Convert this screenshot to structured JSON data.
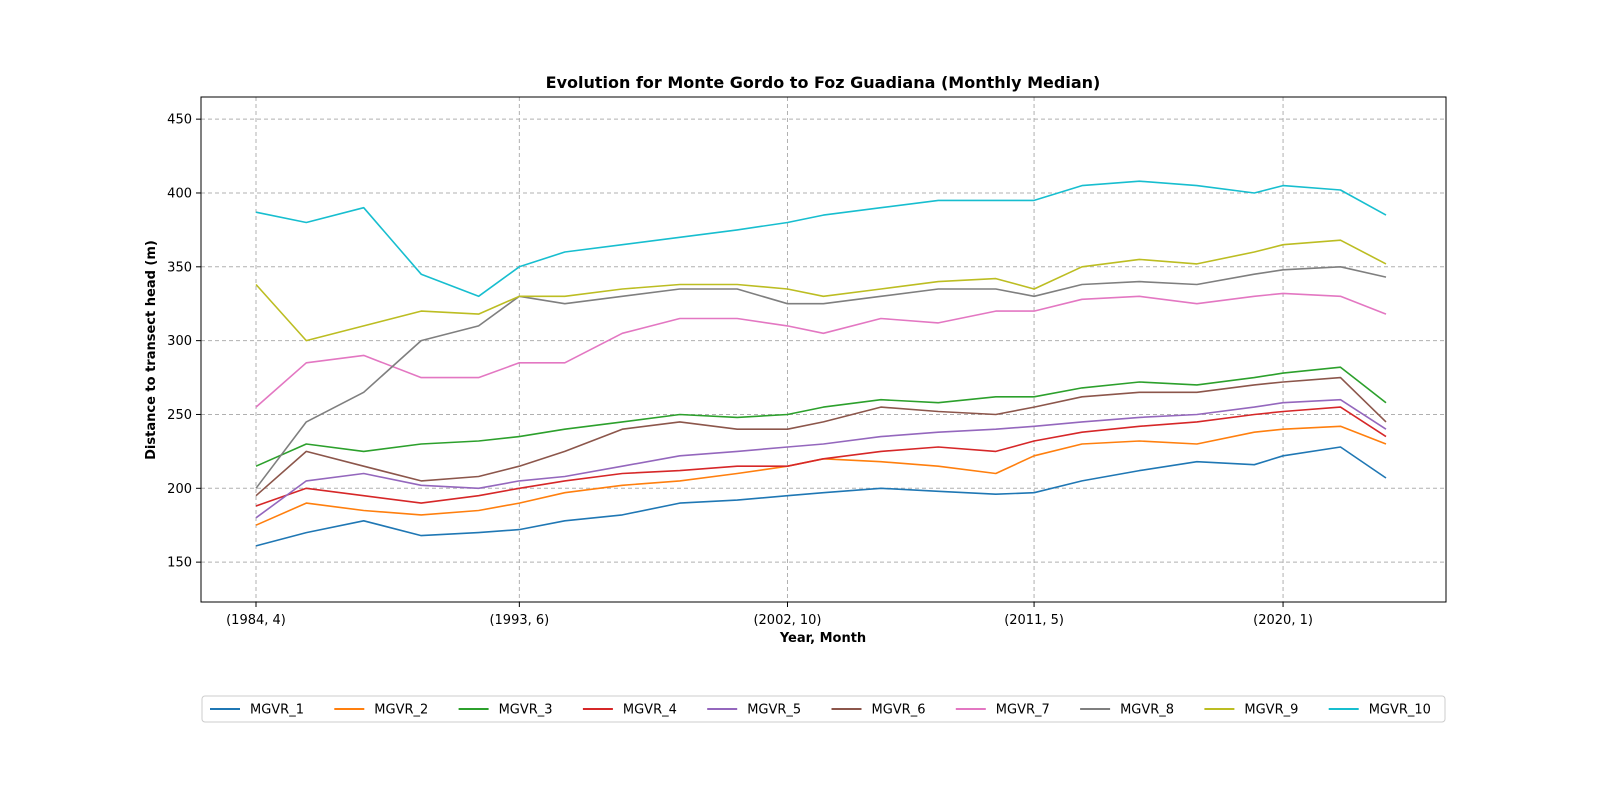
{
  "chart_data": {
    "type": "line",
    "title": "Evolution for Monte Gordo to Foz Guadiana (Monthly Median)",
    "xlabel": "Year, Month",
    "ylabel": "Distance to transect head (m)",
    "x_ticks": [
      "(1984, 4)",
      "(1993, 6)",
      "(2002, 10)",
      "(2011, 5)",
      "(2020, 1)"
    ],
    "x_start": "1984-04",
    "x_end": "2023-08",
    "x_tick_positions": [
      "1984-04",
      "1993-06",
      "2002-10",
      "2011-05",
      "2020-01"
    ],
    "y_ticks": [
      150,
      200,
      250,
      300,
      350,
      400,
      450
    ],
    "ylim": [
      123,
      465
    ],
    "grid": true,
    "legend_position": "bottom",
    "series": [
      {
        "name": "MGVR_1",
        "color": "#1f77b4",
        "x": [
          "1984-04",
          "1986-01",
          "1988-01",
          "1990-01",
          "1992-01",
          "1993-06",
          "1995-01",
          "1997-01",
          "1999-01",
          "2001-01",
          "2002-10",
          "2004-01",
          "2006-01",
          "2008-01",
          "2010-01",
          "2011-05",
          "2013-01",
          "2015-01",
          "2017-01",
          "2019-01",
          "2020-01",
          "2022-01",
          "2023-08"
        ],
        "values": [
          161,
          170,
          178,
          168,
          170,
          172,
          178,
          182,
          190,
          192,
          195,
          197,
          200,
          198,
          196,
          197,
          205,
          212,
          218,
          216,
          222,
          228,
          207
        ]
      },
      {
        "name": "MGVR_2",
        "color": "#ff7f0e",
        "x": [
          "1984-04",
          "1986-01",
          "1988-01",
          "1990-01",
          "1992-01",
          "1993-06",
          "1995-01",
          "1997-01",
          "1999-01",
          "2001-01",
          "2002-10",
          "2004-01",
          "2006-01",
          "2008-01",
          "2010-01",
          "2011-05",
          "2013-01",
          "2015-01",
          "2017-01",
          "2019-01",
          "2020-01",
          "2022-01",
          "2023-08"
        ],
        "values": [
          175,
          190,
          185,
          182,
          185,
          190,
          197,
          202,
          205,
          210,
          215,
          220,
          218,
          215,
          210,
          222,
          230,
          232,
          230,
          238,
          240,
          242,
          230
        ]
      },
      {
        "name": "MGVR_3",
        "color": "#2ca02c",
        "x": [
          "1984-04",
          "1986-01",
          "1988-01",
          "1990-01",
          "1992-01",
          "1993-06",
          "1995-01",
          "1997-01",
          "1999-01",
          "2001-01",
          "2002-10",
          "2004-01",
          "2006-01",
          "2008-01",
          "2010-01",
          "2011-05",
          "2013-01",
          "2015-01",
          "2017-01",
          "2019-01",
          "2020-01",
          "2022-01",
          "2023-08"
        ],
        "values": [
          215,
          230,
          225,
          230,
          232,
          235,
          240,
          245,
          250,
          248,
          250,
          255,
          260,
          258,
          262,
          262,
          268,
          272,
          270,
          275,
          278,
          282,
          258
        ]
      },
      {
        "name": "MGVR_4",
        "color": "#d62728",
        "x": [
          "1984-04",
          "1986-01",
          "1988-01",
          "1990-01",
          "1992-01",
          "1993-06",
          "1995-01",
          "1997-01",
          "1999-01",
          "2001-01",
          "2002-10",
          "2004-01",
          "2006-01",
          "2008-01",
          "2010-01",
          "2011-05",
          "2013-01",
          "2015-01",
          "2017-01",
          "2019-01",
          "2020-01",
          "2022-01",
          "2023-08"
        ],
        "values": [
          188,
          200,
          195,
          190,
          195,
          200,
          205,
          210,
          212,
          215,
          215,
          220,
          225,
          228,
          225,
          232,
          238,
          242,
          245,
          250,
          252,
          255,
          235
        ]
      },
      {
        "name": "MGVR_5",
        "color": "#9467bd",
        "x": [
          "1984-04",
          "1986-01",
          "1988-01",
          "1990-01",
          "1992-01",
          "1993-06",
          "1995-01",
          "1997-01",
          "1999-01",
          "2001-01",
          "2002-10",
          "2004-01",
          "2006-01",
          "2008-01",
          "2010-01",
          "2011-05",
          "2013-01",
          "2015-01",
          "2017-01",
          "2019-01",
          "2020-01",
          "2022-01",
          "2023-08"
        ],
        "values": [
          180,
          205,
          210,
          202,
          200,
          205,
          208,
          215,
          222,
          225,
          228,
          230,
          235,
          238,
          240,
          242,
          245,
          248,
          250,
          255,
          258,
          260,
          240
        ]
      },
      {
        "name": "MGVR_6",
        "color": "#8c564b",
        "x": [
          "1984-04",
          "1986-01",
          "1988-01",
          "1990-01",
          "1992-01",
          "1993-06",
          "1995-01",
          "1997-01",
          "1999-01",
          "2001-01",
          "2002-10",
          "2004-01",
          "2006-01",
          "2008-01",
          "2010-01",
          "2011-05",
          "2013-01",
          "2015-01",
          "2017-01",
          "2019-01",
          "2020-01",
          "2022-01",
          "2023-08"
        ],
        "values": [
          195,
          225,
          215,
          205,
          208,
          215,
          225,
          240,
          245,
          240,
          240,
          245,
          255,
          252,
          250,
          255,
          262,
          265,
          265,
          270,
          272,
          275,
          245
        ]
      },
      {
        "name": "MGVR_7",
        "color": "#e377c2",
        "x": [
          "1984-04",
          "1986-01",
          "1988-01",
          "1990-01",
          "1992-01",
          "1993-06",
          "1995-01",
          "1997-01",
          "1999-01",
          "2001-01",
          "2002-10",
          "2004-01",
          "2006-01",
          "2008-01",
          "2010-01",
          "2011-05",
          "2013-01",
          "2015-01",
          "2017-01",
          "2019-01",
          "2020-01",
          "2022-01",
          "2023-08"
        ],
        "values": [
          255,
          285,
          290,
          275,
          275,
          285,
          285,
          305,
          315,
          315,
          310,
          305,
          315,
          312,
          320,
          320,
          328,
          330,
          325,
          330,
          332,
          330,
          318
        ]
      },
      {
        "name": "MGVR_8",
        "color": "#7f7f7f",
        "x": [
          "1984-04",
          "1986-01",
          "1988-01",
          "1990-01",
          "1992-01",
          "1993-06",
          "1995-01",
          "1997-01",
          "1999-01",
          "2001-01",
          "2002-10",
          "2004-01",
          "2006-01",
          "2008-01",
          "2010-01",
          "2011-05",
          "2013-01",
          "2015-01",
          "2017-01",
          "2019-01",
          "2020-01",
          "2022-01",
          "2023-08"
        ],
        "values": [
          200,
          245,
          265,
          300,
          310,
          330,
          325,
          330,
          335,
          335,
          325,
          325,
          330,
          335,
          335,
          330,
          338,
          340,
          338,
          345,
          348,
          350,
          343
        ]
      },
      {
        "name": "MGVR_9",
        "color": "#bcbd22",
        "x": [
          "1984-04",
          "1986-01",
          "1988-01",
          "1990-01",
          "1992-01",
          "1993-06",
          "1995-01",
          "1997-01",
          "1999-01",
          "2001-01",
          "2002-10",
          "2004-01",
          "2006-01",
          "2008-01",
          "2010-01",
          "2011-05",
          "2013-01",
          "2015-01",
          "2017-01",
          "2019-01",
          "2020-01",
          "2022-01",
          "2023-08"
        ],
        "values": [
          338,
          300,
          310,
          320,
          318,
          330,
          330,
          335,
          338,
          338,
          335,
          330,
          335,
          340,
          342,
          335,
          350,
          355,
          352,
          360,
          365,
          368,
          352
        ]
      },
      {
        "name": "MGVR_10",
        "color": "#17becf",
        "x": [
          "1984-04",
          "1986-01",
          "1988-01",
          "1990-01",
          "1992-01",
          "1993-06",
          "1995-01",
          "1997-01",
          "1999-01",
          "2001-01",
          "2002-10",
          "2004-01",
          "2006-01",
          "2008-01",
          "2010-01",
          "2011-05",
          "2013-01",
          "2015-01",
          "2017-01",
          "2019-01",
          "2020-01",
          "2022-01",
          "2023-08"
        ],
        "values": [
          387,
          380,
          390,
          345,
          330,
          350,
          360,
          365,
          370,
          375,
          380,
          385,
          390,
          395,
          395,
          395,
          405,
          408,
          405,
          400,
          405,
          402,
          385
        ]
      }
    ]
  }
}
